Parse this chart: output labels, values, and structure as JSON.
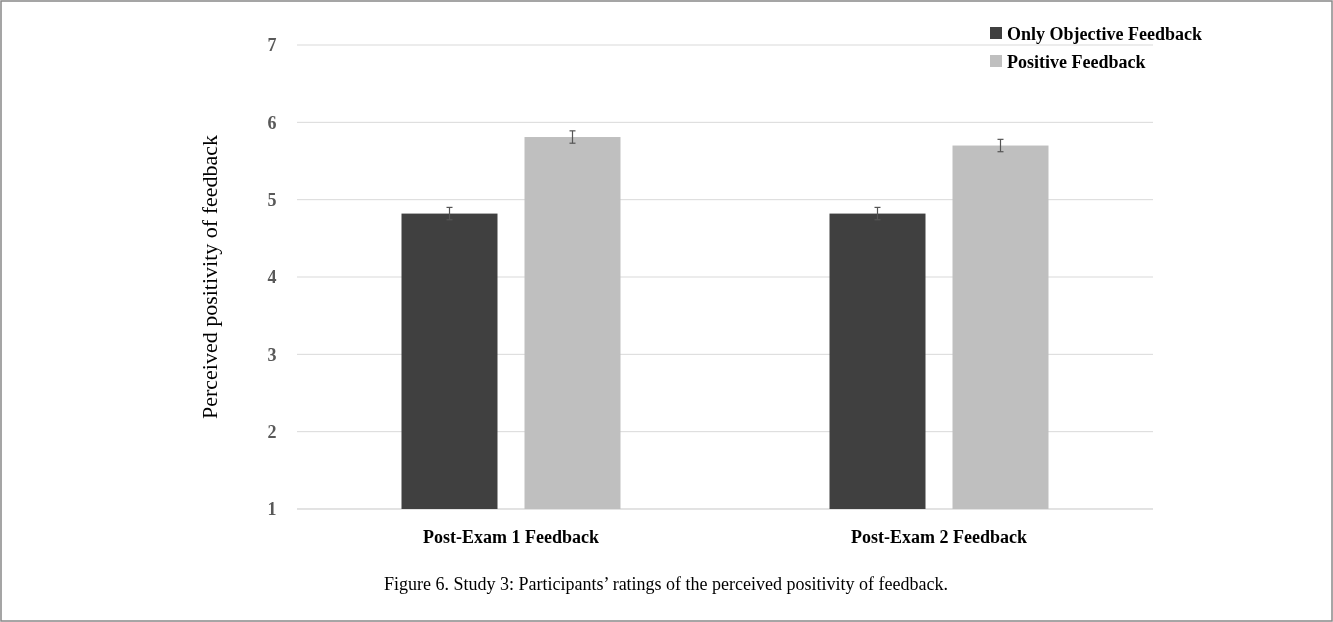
{
  "chart_data": {
    "type": "bar",
    "ylabel": "Perceived positivity of feedback",
    "categories": [
      "Post-Exam 1 Feedback",
      "Post-Exam 2 Feedback"
    ],
    "series": [
      {
        "name": "Only Objective Feedback",
        "color": "#404040",
        "values": [
          4.82,
          4.82
        ],
        "errors": [
          0.08,
          0.08
        ]
      },
      {
        "name": "Positive Feedback",
        "color": "#bfbfbf",
        "values": [
          5.81,
          5.7
        ],
        "errors": [
          0.08,
          0.08
        ]
      }
    ],
    "ylim": [
      1,
      7
    ],
    "yticks": [
      1,
      2,
      3,
      4,
      5,
      6,
      7
    ],
    "grid": "y",
    "legend": "top right",
    "annotations": [
      "Figure 6. Study 3: Participants’ ratings of the perceived positivity of feedback."
    ]
  }
}
